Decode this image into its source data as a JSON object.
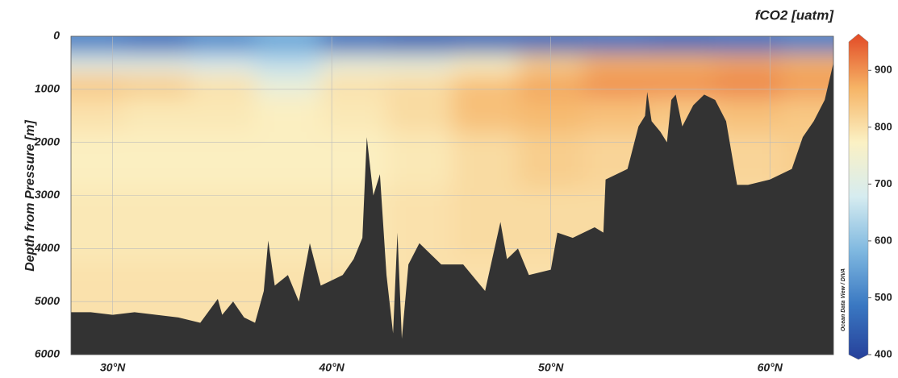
{
  "chart_data": {
    "type": "section",
    "title": "fCO2 [uatm]",
    "ylabel": "Depth from Pressure [m]",
    "credit": "Ocean Data View / DIVA",
    "xlim": [
      28.1,
      62.9
    ],
    "xticks": [
      {
        "value": 30,
        "label": "30°N"
      },
      {
        "value": 40,
        "label": "40°N"
      },
      {
        "value": 50,
        "label": "50°N"
      },
      {
        "value": 60,
        "label": "60°N"
      }
    ],
    "ylim": [
      0,
      6000
    ],
    "yticks": [
      0,
      1000,
      2000,
      3000,
      4000,
      5000,
      6000
    ],
    "y_reversed": true,
    "grid": true,
    "clim": [
      400,
      950
    ],
    "cticks": [
      400,
      500,
      600,
      700,
      800,
      900
    ],
    "colorscale": [
      "#26409a",
      "#3a78c2",
      "#7fb8e0",
      "#d6ecf0",
      "#fbf1c4",
      "#f6b466",
      "#e24a26"
    ],
    "field": {
      "x": [
        29,
        32,
        35,
        38,
        41,
        44,
        47,
        50,
        53,
        56,
        59,
        62
      ],
      "depth": [
        150,
        500,
        900,
        1400,
        2200,
        3500,
        5000
      ],
      "values": [
        [
          500,
          480,
          520,
          560,
          480,
          460,
          470,
          470,
          480,
          470,
          480,
          500
        ],
        [
          700,
          700,
          680,
          650,
          720,
          720,
          760,
          820,
          860,
          860,
          870,
          860
        ],
        [
          830,
          820,
          790,
          720,
          790,
          800,
          840,
          870,
          890,
          890,
          900,
          880
        ],
        [
          790,
          780,
          780,
          770,
          780,
          800,
          840,
          850,
          840,
          830,
          840,
          830
        ],
        [
          770,
          770,
          770,
          770,
          770,
          780,
          800,
          820,
          810,
          800,
          810,
          820
        ],
        [
          780,
          780,
          780,
          780,
          780,
          790,
          800,
          800,
          800,
          800,
          800,
          800
        ],
        [
          790,
          790,
          790,
          790,
          790,
          790,
          790,
          790,
          790,
          790,
          790,
          790
        ]
      ]
    },
    "bathymetry": {
      "color": "#333333",
      "x": [
        28.1,
        29,
        30,
        31,
        32,
        33,
        34,
        34.8,
        35,
        35.5,
        36,
        36.5,
        36.9,
        37.1,
        37.4,
        38,
        38.5,
        39,
        39.5,
        40,
        40.5,
        41,
        41.4,
        41.6,
        41.9,
        42.2,
        42.5,
        42.8,
        43,
        43.2,
        43.5,
        44,
        45,
        46,
        47,
        47.7,
        48,
        48.5,
        49,
        50,
        50.3,
        51,
        52,
        52.4,
        52.5,
        53.5,
        54,
        54.3,
        54.4,
        54.6,
        55,
        55.3,
        55.5,
        55.7,
        56,
        56.5,
        57,
        57.5,
        58,
        58.5,
        59,
        60,
        61,
        61.5,
        62,
        62.5,
        62.9
      ],
      "depth": [
        5200,
        5200,
        5250,
        5200,
        5250,
        5300,
        5400,
        4950,
        5250,
        5000,
        5300,
        5400,
        4800,
        3850,
        4700,
        4500,
        5000,
        3900,
        4700,
        4600,
        4500,
        4200,
        3800,
        1900,
        3000,
        2600,
        4500,
        5600,
        3700,
        5700,
        4300,
        3900,
        4300,
        4300,
        4800,
        3500,
        4200,
        4000,
        4500,
        4400,
        3700,
        3800,
        3600,
        3700,
        2700,
        2500,
        1700,
        1500,
        1050,
        1600,
        1800,
        2000,
        1200,
        1100,
        1700,
        1300,
        1100,
        1200,
        1600,
        2800,
        2800,
        2700,
        2500,
        1900,
        1600,
        1200,
        500
      ]
    }
  }
}
